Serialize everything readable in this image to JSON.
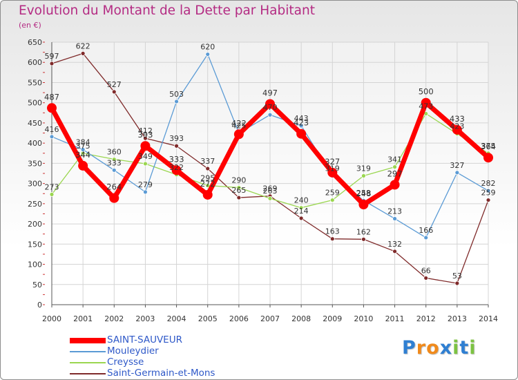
{
  "title": "Evolution du Montant de la Dette par Habitant",
  "unit_label": "(en €)",
  "logo": {
    "text": "Proxiti",
    "letters": [
      "P",
      "r",
      "o",
      "x",
      "i",
      "t",
      "i"
    ],
    "letter_colors": [
      "#2f7fd2",
      "#f08a1c",
      "#f08a1c",
      "#2f7fd2",
      "#7cc242",
      "#2f7fd2",
      "#7cc242"
    ]
  },
  "chart_data": {
    "type": "line",
    "title": "Evolution du Montant de la Dette par Habitant",
    "ylabel": "(en €)",
    "xlabel": "",
    "x": [
      "2000",
      "2001",
      "2002",
      "2003",
      "2004",
      "2005",
      "2006",
      "2007",
      "2008",
      "2009",
      "2010",
      "2011",
      "2012",
      "2013",
      "2014"
    ],
    "ylim": [
      0,
      650
    ],
    "yticks": [
      0,
      50,
      100,
      150,
      200,
      250,
      300,
      350,
      400,
      450,
      500,
      550,
      600,
      650
    ],
    "grid": true,
    "legend_position": "bottom-left",
    "series": [
      {
        "name": "SAINT-SAUVEUR",
        "color": "#ff0000",
        "values": [
          487,
          344,
          264,
          393,
          333,
          272,
          422,
          497,
          423,
          327,
          248,
          297,
          500,
          433,
          364
        ]
      },
      {
        "name": "Mouleydier",
        "color": "#5b9bd5",
        "values": [
          416,
          384,
          333,
          279,
          503,
          620,
          425,
          470,
          443,
          319,
          258,
          213,
          166,
          327,
          282
        ]
      },
      {
        "name": "Creysse",
        "color": "#9ad64f",
        "values": [
          273,
          375,
          360,
          349,
          322,
          295,
          290,
          263,
          240,
          259,
          319,
          341,
          473,
          423,
          375
        ]
      },
      {
        "name": "Saint-Germain-et-Mons",
        "color": "#7f2a2a",
        "values": [
          597,
          622,
          527,
          412,
          393,
          337,
          265,
          269,
          214,
          163,
          162,
          132,
          66,
          53,
          259
        ]
      }
    ]
  }
}
